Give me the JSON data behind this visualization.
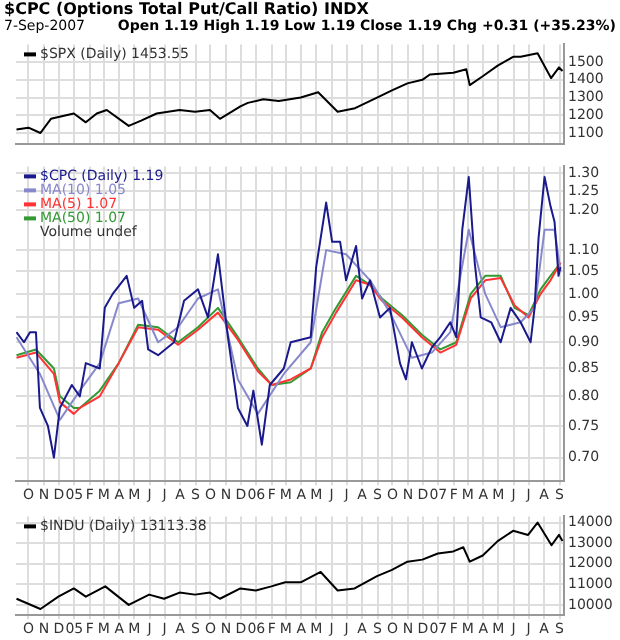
{
  "chart_data": [
    {
      "type": "line",
      "title": "$CPC (Options Total Put/Call Ratio) INDX",
      "subtitle": "7-Sep-2007",
      "annotations": [
        "Open 1.19 High 1.19 Low 1.19 Close 1.19 Chg +0.31 (+35.23%)"
      ],
      "xlim": [
        "2004-09-06",
        "2007-09-10"
      ],
      "xticks": [
        {
          "value": "2004-10-01",
          "label": null
        },
        {
          "value": "2004-11-01",
          "label": null
        },
        {
          "value": "2004-12-01",
          "label": null
        },
        {
          "value": "2005-01-01",
          "label": null
        },
        {
          "value": "2005-02-01",
          "label": null
        },
        {
          "value": "2005-03-01",
          "label": null
        },
        {
          "value": "2005-04-01",
          "label": null
        },
        {
          "value": "2005-05-01",
          "label": null
        },
        {
          "value": "2005-06-01",
          "label": null
        },
        {
          "value": "2005-07-01",
          "label": null
        },
        {
          "value": "2005-08-01",
          "label": null
        },
        {
          "value": "2005-09-01",
          "label": null
        },
        {
          "value": "2005-10-01",
          "label": null
        },
        {
          "value": "2005-11-01",
          "label": null
        },
        {
          "value": "2005-12-01",
          "label": null
        },
        {
          "value": "2006-01-01",
          "label": null
        },
        {
          "value": "2006-02-01",
          "label": null
        },
        {
          "value": "2006-03-01",
          "label": null
        },
        {
          "value": "2006-04-01",
          "label": null
        },
        {
          "value": "2006-05-01",
          "label": null
        },
        {
          "value": "2006-06-01",
          "label": null
        },
        {
          "value": "2006-07-01",
          "label": null
        },
        {
          "value": "2006-08-01",
          "label": null
        },
        {
          "value": "2006-09-01",
          "label": null
        },
        {
          "value": "2006-10-01",
          "label": null
        },
        {
          "value": "2006-11-01",
          "label": null
        },
        {
          "value": "2006-12-01",
          "label": null
        },
        {
          "value": "2007-01-01",
          "label": null
        },
        {
          "value": "2007-02-01",
          "label": null
        },
        {
          "value": "2007-03-01",
          "label": null
        },
        {
          "value": "2007-04-01",
          "label": null
        },
        {
          "value": "2007-05-01",
          "label": null
        },
        {
          "value": "2007-06-01",
          "label": null
        },
        {
          "value": "2007-07-01",
          "label": null
        },
        {
          "value": "2007-08-01",
          "label": null
        },
        {
          "value": "2007-09-01",
          "label": null
        }
      ],
      "ylim": [
        1040,
        1600
      ],
      "yticks": [
        1100,
        1200,
        1300,
        1400,
        1500
      ],
      "grid": true,
      "legend": "top left",
      "tick_labels": "y",
      "series": [
        {
          "name": "$SPX (Daily) 1453.55",
          "color": "#000000",
          "x": [
            "2004-09-07",
            "2004-10-01",
            "2004-10-25",
            "2004-11-15",
            "2004-12-31",
            "2005-01-24",
            "2005-02-15",
            "2005-03-07",
            "2005-04-20",
            "2005-05-15",
            "2005-06-15",
            "2005-07-31",
            "2005-08-31",
            "2005-09-30",
            "2005-10-20",
            "2005-11-30",
            "2005-12-15",
            "2006-01-15",
            "2006-02-15",
            "2006-03-31",
            "2006-05-05",
            "2006-06-13",
            "2006-07-18",
            "2006-08-31",
            "2006-09-30",
            "2006-10-31",
            "2006-11-30",
            "2006-12-15",
            "2007-01-31",
            "2007-02-26",
            "2007-03-05",
            "2007-03-31",
            "2007-04-30",
            "2007-05-31",
            "2007-06-15",
            "2007-07-19",
            "2007-08-15",
            "2007-08-31",
            "2007-09-07"
          ],
          "values": [
            1120,
            1130,
            1100,
            1180,
            1210,
            1160,
            1210,
            1230,
            1140,
            1170,
            1210,
            1230,
            1220,
            1230,
            1180,
            1250,
            1270,
            1290,
            1280,
            1300,
            1330,
            1220,
            1240,
            1300,
            1340,
            1380,
            1400,
            1430,
            1440,
            1460,
            1370,
            1420,
            1480,
            1530,
            1530,
            1550,
            1410,
            1470,
            1450
          ]
        }
      ]
    },
    {
      "type": "line",
      "xlim": [
        "2004-09-06",
        "2007-09-10"
      ],
      "xticks": [
        {
          "value": "2004-10-01",
          "label": "O"
        },
        {
          "value": "2004-11-01",
          "label": "N"
        },
        {
          "value": "2004-12-01",
          "label": "D"
        },
        {
          "value": "2005-01-01",
          "label": "05"
        },
        {
          "value": "2005-02-01",
          "label": "F"
        },
        {
          "value": "2005-03-01",
          "label": "M"
        },
        {
          "value": "2005-04-01",
          "label": "A"
        },
        {
          "value": "2005-05-01",
          "label": "M"
        },
        {
          "value": "2005-06-01",
          "label": "J"
        },
        {
          "value": "2005-07-01",
          "label": "J"
        },
        {
          "value": "2005-08-01",
          "label": "A"
        },
        {
          "value": "2005-09-01",
          "label": "S"
        },
        {
          "value": "2005-10-01",
          "label": "O"
        },
        {
          "value": "2005-11-01",
          "label": "N"
        },
        {
          "value": "2005-12-01",
          "label": "D"
        },
        {
          "value": "2006-01-01",
          "label": "06"
        },
        {
          "value": "2006-02-01",
          "label": "F"
        },
        {
          "value": "2006-03-01",
          "label": "M"
        },
        {
          "value": "2006-04-01",
          "label": "A"
        },
        {
          "value": "2006-05-01",
          "label": "M"
        },
        {
          "value": "2006-06-01",
          "label": "J"
        },
        {
          "value": "2006-07-01",
          "label": "J"
        },
        {
          "value": "2006-08-01",
          "label": "A"
        },
        {
          "value": "2006-09-01",
          "label": "S"
        },
        {
          "value": "2006-10-01",
          "label": "O"
        },
        {
          "value": "2006-11-01",
          "label": "N"
        },
        {
          "value": "2006-12-01",
          "label": "D"
        },
        {
          "value": "2007-01-01",
          "label": "07"
        },
        {
          "value": "2007-02-01",
          "label": "F"
        },
        {
          "value": "2007-03-01",
          "label": "M"
        },
        {
          "value": "2007-04-01",
          "label": "A"
        },
        {
          "value": "2007-05-01",
          "label": "M"
        },
        {
          "value": "2007-06-01",
          "label": "J"
        },
        {
          "value": "2007-07-01",
          "label": "J"
        },
        {
          "value": "2007-08-01",
          "label": "A"
        },
        {
          "value": "2007-09-01",
          "label": "S"
        }
      ],
      "ylim": [
        0.665,
        1.32
      ],
      "yticks": [
        {
          "value": 0.7,
          "label": "0.70"
        },
        0.75,
        {
          "value": 0.8,
          "label": "0.80"
        },
        0.85,
        {
          "value": 0.9,
          "label": "0.90"
        },
        0.95,
        {
          "value": 1,
          "label": "1.00"
        },
        1.05,
        {
          "value": 1.1,
          "label": "1.10"
        },
        {
          "value": 1.2,
          "label": "1.20"
        },
        1.25,
        {
          "value": 1.3,
          "label": "1.30"
        }
      ],
      "log": "y",
      "grid": true,
      "legend": "top left",
      "annotations": [
        "Volume undef"
      ],
      "series": [
        {
          "name": "$CPC (Daily) 1.19",
          "color": "#1a1a8c",
          "x": [
            "2004-09-07",
            "2004-09-22",
            "2004-10-04",
            "2004-10-16",
            "2004-10-24",
            "2004-11-09",
            "2004-11-21",
            "2004-12-03",
            "2004-12-15",
            "2004-12-27",
            "2005-01-12",
            "2005-01-24",
            "2005-02-21",
            "2005-03-03",
            "2005-03-19",
            "2005-04-16",
            "2005-05-01",
            "2005-05-17",
            "2005-05-29",
            "2005-06-18",
            "2005-07-20",
            "2005-08-09",
            "2005-09-06",
            "2005-09-26",
            "2005-10-16",
            "2005-11-05",
            "2005-11-25",
            "2005-12-14",
            "2005-12-26",
            "2006-01-12",
            "2006-01-28",
            "2006-02-25",
            "2006-03-11",
            "2006-04-20",
            "2006-05-01",
            "2006-05-21",
            "2006-06-02",
            "2006-06-18",
            "2006-06-30",
            "2006-07-20",
            "2006-08-01",
            "2006-08-17",
            "2006-09-06",
            "2006-09-26",
            "2006-10-16",
            "2006-10-28",
            "2006-11-09",
            "2006-11-29",
            "2006-12-19",
            "2007-01-05",
            "2007-01-25",
            "2007-02-06",
            "2007-02-18",
            "2007-03-03",
            "2007-03-15",
            "2007-03-27",
            "2007-04-17",
            "2007-05-06",
            "2007-05-26",
            "2007-06-15",
            "2007-07-05",
            "2007-07-13",
            "2007-07-21",
            "2007-08-02",
            "2007-08-14",
            "2007-08-22",
            "2007-08-30",
            "2007-09-03"
          ],
          "values": [
            0.92,
            0.9,
            0.92,
            0.92,
            0.78,
            0.75,
            0.7,
            0.78,
            0.8,
            0.82,
            0.8,
            0.86,
            0.85,
            0.97,
            1.0,
            1.04,
            0.97,
            0.985,
            0.886,
            0.875,
            0.9,
            0.985,
            1.01,
            0.95,
            1.09,
            0.91,
            0.78,
            0.75,
            0.81,
            0.72,
            0.82,
            0.85,
            0.9,
            0.91,
            1.06,
            1.22,
            1.12,
            1.12,
            1.03,
            1.11,
            0.99,
            1.03,
            0.95,
            0.97,
            0.86,
            0.83,
            0.9,
            0.85,
            0.89,
            0.91,
            0.94,
            0.91,
            1.15,
            1.29,
            1.07,
            0.95,
            0.94,
            0.9,
            0.97,
            0.94,
            0.9,
            0.97,
            1.13,
            1.29,
            1.21,
            1.17,
            1.04,
            1.06
          ]
        },
        {
          "name": "MA(10) 1.05",
          "color": "#8888cc",
          "x": [
            "2004-09-07",
            "2004-10-24",
            "2004-12-03",
            "2005-01-12",
            "2005-02-21",
            "2005-03-31",
            "2005-05-09",
            "2005-06-18",
            "2005-07-28",
            "2005-09-06",
            "2005-10-16",
            "2005-11-25",
            "2006-01-04",
            "2006-02-25",
            "2006-04-20",
            "2006-05-21",
            "2006-06-30",
            "2006-08-17",
            "2006-09-26",
            "2006-11-09",
            "2006-12-19",
            "2007-01-25",
            "2007-03-03",
            "2007-04-05",
            "2007-05-06",
            "2007-06-15",
            "2007-07-13",
            "2007-08-02",
            "2007-08-22",
            "2007-09-03"
          ],
          "values": [
            0.91,
            0.84,
            0.76,
            0.81,
            0.86,
            0.98,
            0.99,
            0.9,
            0.93,
            0.99,
            1.01,
            0.83,
            0.77,
            0.84,
            0.9,
            1.1,
            1.09,
            1.03,
            0.96,
            0.87,
            0.88,
            0.92,
            1.15,
            1.0,
            0.93,
            0.94,
            0.97,
            1.15,
            1.15,
            1.05
          ]
        },
        {
          "name": "MA(5) 1.07",
          "color": "#ff3333",
          "x": [
            "2004-09-07",
            "2004-10-16",
            "2004-11-21",
            "2004-12-03",
            "2004-12-31",
            "2005-01-12",
            "2005-02-21",
            "2005-03-31",
            "2005-05-09",
            "2005-06-18",
            "2005-07-28",
            "2005-09-06",
            "2005-10-16",
            "2005-11-25",
            "2006-01-04",
            "2006-02-01",
            "2006-03-11",
            "2006-04-20",
            "2006-05-13",
            "2006-06-10",
            "2006-07-20",
            "2006-08-17",
            "2006-09-10",
            "2006-10-20",
            "2006-11-29",
            "2007-01-05",
            "2007-02-06",
            "2007-03-07",
            "2007-04-05",
            "2007-05-06",
            "2007-06-03",
            "2007-07-01",
            "2007-07-25",
            "2007-08-14",
            "2007-09-03"
          ],
          "values": [
            0.87,
            0.88,
            0.84,
            0.79,
            0.77,
            0.78,
            0.8,
            0.86,
            0.93,
            0.925,
            0.895,
            0.925,
            0.96,
            0.905,
            0.845,
            0.82,
            0.83,
            0.85,
            0.91,
            0.96,
            1.03,
            1.02,
            0.985,
            0.95,
            0.91,
            0.88,
            0.895,
            0.99,
            1.03,
            1.035,
            0.975,
            0.95,
            1.0,
            1.03,
            1.07
          ]
        },
        {
          "name": "MA(50) 1.07",
          "color": "#339933",
          "x": [
            "2004-09-07",
            "2004-10-16",
            "2004-11-21",
            "2004-12-03",
            "2004-12-31",
            "2005-01-12",
            "2005-02-21",
            "2005-03-31",
            "2005-05-09",
            "2005-06-18",
            "2005-07-28",
            "2005-09-06",
            "2005-10-16",
            "2005-11-25",
            "2006-01-04",
            "2006-02-01",
            "2006-03-11",
            "2006-04-20",
            "2006-05-13",
            "2006-06-10",
            "2006-07-20",
            "2006-08-17",
            "2006-09-10",
            "2006-10-20",
            "2006-11-29",
            "2007-01-05",
            "2007-02-06",
            "2007-03-07",
            "2007-04-05",
            "2007-05-06",
            "2007-06-03",
            "2007-07-01",
            "2007-07-25",
            "2007-08-14",
            "2007-09-03"
          ],
          "values": [
            0.875,
            0.886,
            0.85,
            0.8,
            0.78,
            0.78,
            0.81,
            0.86,
            0.935,
            0.93,
            0.9,
            0.93,
            0.97,
            0.91,
            0.85,
            0.82,
            0.825,
            0.85,
            0.92,
            0.97,
            1.04,
            1.02,
            0.99,
            0.955,
            0.915,
            0.886,
            0.9,
            1.0,
            1.04,
            1.04,
            0.97,
            0.955,
            1.01,
            1.04,
            1.07
          ]
        }
      ]
    },
    {
      "type": "line",
      "xlim": [
        "2004-09-06",
        "2007-09-10"
      ],
      "xticks": [
        {
          "value": "2004-10-01",
          "label": "O"
        },
        {
          "value": "2004-11-01",
          "label": "N"
        },
        {
          "value": "2004-12-01",
          "label": "D"
        },
        {
          "value": "2005-01-01",
          "label": "05"
        },
        {
          "value": "2005-02-01",
          "label": "F"
        },
        {
          "value": "2005-03-01",
          "label": "M"
        },
        {
          "value": "2005-04-01",
          "label": "A"
        },
        {
          "value": "2005-05-01",
          "label": "M"
        },
        {
          "value": "2005-06-01",
          "label": "J"
        },
        {
          "value": "2005-07-01",
          "label": "J"
        },
        {
          "value": "2005-08-01",
          "label": "A"
        },
        {
          "value": "2005-09-01",
          "label": "S"
        },
        {
          "value": "2005-10-01",
          "label": "O"
        },
        {
          "value": "2005-11-01",
          "label": "N"
        },
        {
          "value": "2005-12-01",
          "label": "D"
        },
        {
          "value": "2006-01-01",
          "label": "06"
        },
        {
          "value": "2006-02-01",
          "label": "F"
        },
        {
          "value": "2006-03-01",
          "label": "M"
        },
        {
          "value": "2006-04-01",
          "label": "A"
        },
        {
          "value": "2006-05-01",
          "label": "M"
        },
        {
          "value": "2006-06-01",
          "label": "J"
        },
        {
          "value": "2006-07-01",
          "label": "J"
        },
        {
          "value": "2006-08-01",
          "label": "A"
        },
        {
          "value": "2006-09-01",
          "label": "S"
        },
        {
          "value": "2006-10-01",
          "label": "O"
        },
        {
          "value": "2006-11-01",
          "label": "N"
        },
        {
          "value": "2006-12-01",
          "label": "D"
        },
        {
          "value": "2007-01-01",
          "label": "07"
        },
        {
          "value": "2007-02-01",
          "label": "F"
        },
        {
          "value": "2007-03-01",
          "label": "M"
        },
        {
          "value": "2007-04-01",
          "label": "A"
        },
        {
          "value": "2007-05-01",
          "label": "M"
        },
        {
          "value": "2007-06-01",
          "label": "J"
        },
        {
          "value": "2007-07-01",
          "label": "J"
        },
        {
          "value": "2007-08-01",
          "label": "A"
        },
        {
          "value": "2007-09-01",
          "label": "S"
        }
      ],
      "ylim": [
        9500,
        14300
      ],
      "yticks": [
        10000,
        11000,
        12000,
        13000,
        14000
      ],
      "grid": true,
      "legend": "top left",
      "series": [
        {
          "name": "$INDU (Daily) 13113.38",
          "color": "#000000",
          "x": [
            "2004-09-07",
            "2004-10-25",
            "2004-11-30",
            "2004-12-31",
            "2005-01-24",
            "2005-03-04",
            "2005-04-20",
            "2005-05-31",
            "2005-06-30",
            "2005-07-31",
            "2005-08-31",
            "2005-09-30",
            "2005-10-20",
            "2005-11-30",
            "2005-12-31",
            "2006-01-31",
            "2006-02-28",
            "2006-03-31",
            "2006-05-10",
            "2006-06-13",
            "2006-07-17",
            "2006-08-31",
            "2006-09-30",
            "2006-10-31",
            "2006-11-30",
            "2006-12-31",
            "2007-01-31",
            "2007-02-20",
            "2007-03-05",
            "2007-03-31",
            "2007-04-30",
            "2007-05-31",
            "2007-06-30",
            "2007-07-19",
            "2007-08-16",
            "2007-08-31",
            "2007-09-07"
          ],
          "values": [
            10300,
            9800,
            10400,
            10800,
            10400,
            10900,
            10000,
            10500,
            10300,
            10600,
            10500,
            10600,
            10300,
            10800,
            10700,
            10900,
            11100,
            11100,
            11600,
            10700,
            10800,
            11400,
            11700,
            12100,
            12200,
            12500,
            12600,
            12800,
            12100,
            12400,
            13100,
            13600,
            13400,
            14000,
            12900,
            13400,
            13100
          ]
        }
      ]
    }
  ]
}
